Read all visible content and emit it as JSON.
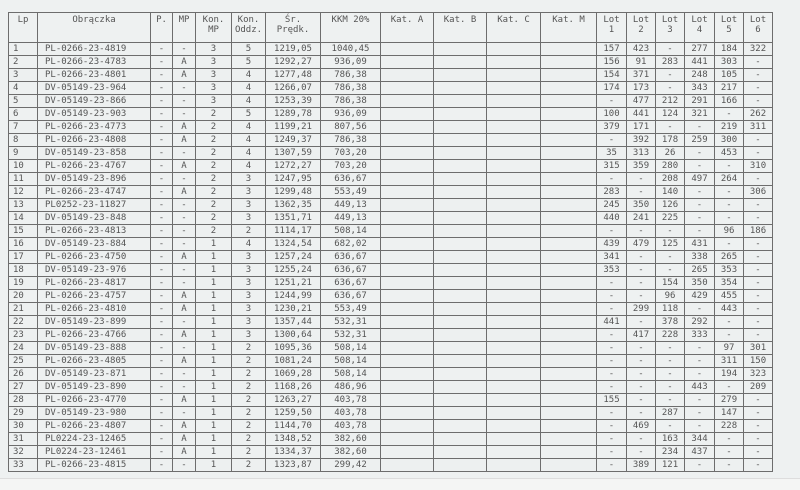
{
  "headers": [
    "Lp",
    "Obrączka",
    "P.",
    "MP",
    "Kon.\nMP",
    "Kon.\nOddz.",
    "Śr.\nPrędk.",
    "KKM 20%",
    "Kat. A",
    "Kat. B",
    "Kat. C",
    "Kat. M",
    "Lot\n1",
    "Lot\n2",
    "Lot\n3",
    "Lot\n4",
    "Lot\n5",
    "Lot\n6"
  ],
  "rows": [
    [
      "1",
      "PL-0266-23-4819",
      "-",
      "-",
      "3",
      "5",
      "1219,05",
      "1040,45",
      "",
      "",
      "",
      "",
      "157",
      "423",
      "-",
      "277",
      "184",
      "322"
    ],
    [
      "2",
      "PL-0266-23-4783",
      "-",
      "A",
      "3",
      "5",
      "1292,27",
      "936,09",
      "",
      "",
      "",
      "",
      "156",
      "91",
      "283",
      "441",
      "303",
      "-"
    ],
    [
      "3",
      "PL-0266-23-4801",
      "-",
      "A",
      "3",
      "4",
      "1277,48",
      "786,38",
      "",
      "",
      "",
      "",
      "154",
      "371",
      "-",
      "248",
      "105",
      "-"
    ],
    [
      "4",
      "DV-05149-23-964",
      "-",
      "-",
      "3",
      "4",
      "1266,07",
      "786,38",
      "",
      "",
      "",
      "",
      "174",
      "173",
      "-",
      "343",
      "217",
      "-"
    ],
    [
      "5",
      "DV-05149-23-866",
      "-",
      "-",
      "3",
      "4",
      "1253,39",
      "786,38",
      "",
      "",
      "",
      "",
      "-",
      "477",
      "212",
      "291",
      "166",
      "-"
    ],
    [
      "6",
      "DV-05149-23-903",
      "-",
      "-",
      "2",
      "5",
      "1289,78",
      "936,09",
      "",
      "",
      "",
      "",
      "100",
      "441",
      "124",
      "321",
      "-",
      "262"
    ],
    [
      "7",
      "PL-0266-23-4773",
      "-",
      "A",
      "2",
      "4",
      "1199,21",
      "807,56",
      "",
      "",
      "",
      "",
      "379",
      "171",
      "-",
      "-",
      "219",
      "311"
    ],
    [
      "8",
      "PL-0266-23-4808",
      "-",
      "A",
      "2",
      "4",
      "1249,37",
      "786,38",
      "",
      "",
      "",
      "",
      "-",
      "392",
      "178",
      "259",
      "300",
      "-"
    ],
    [
      "9",
      "DV-05149-23-858",
      "-",
      "-",
      "2",
      "4",
      "1307,59",
      "703,20",
      "",
      "",
      "",
      "",
      "35",
      "313",
      "26",
      "-",
      "453",
      "-"
    ],
    [
      "10",
      "PL-0266-23-4767",
      "-",
      "A",
      "2",
      "4",
      "1272,27",
      "703,20",
      "",
      "",
      "",
      "",
      "315",
      "359",
      "280",
      "-",
      "-",
      "310"
    ],
    [
      "11",
      "DV-05149-23-896",
      "-",
      "-",
      "2",
      "3",
      "1247,95",
      "636,67",
      "",
      "",
      "",
      "",
      "-",
      "-",
      "208",
      "497",
      "264",
      "-"
    ],
    [
      "12",
      "PL-0266-23-4747",
      "-",
      "A",
      "2",
      "3",
      "1299,48",
      "553,49",
      "",
      "",
      "",
      "",
      "283",
      "-",
      "140",
      "-",
      "-",
      "306"
    ],
    [
      "13",
      "PL0252-23-11827",
      "-",
      "-",
      "2",
      "3",
      "1362,35",
      "449,13",
      "",
      "",
      "",
      "",
      "245",
      "350",
      "126",
      "-",
      "-",
      "-"
    ],
    [
      "14",
      "DV-05149-23-848",
      "-",
      "-",
      "2",
      "3",
      "1351,71",
      "449,13",
      "",
      "",
      "",
      "",
      "440",
      "241",
      "225",
      "-",
      "-",
      "-"
    ],
    [
      "15",
      "PL-0266-23-4813",
      "-",
      "-",
      "2",
      "2",
      "1114,17",
      "508,14",
      "",
      "",
      "",
      "",
      "-",
      "-",
      "-",
      "-",
      "96",
      "186"
    ],
    [
      "16",
      "DV-05149-23-884",
      "-",
      "-",
      "1",
      "4",
      "1324,54",
      "682,02",
      "",
      "",
      "",
      "",
      "439",
      "479",
      "125",
      "431",
      "-",
      "-"
    ],
    [
      "17",
      "PL-0266-23-4750",
      "-",
      "A",
      "1",
      "3",
      "1257,24",
      "636,67",
      "",
      "",
      "",
      "",
      "341",
      "-",
      "-",
      "338",
      "265",
      "-"
    ],
    [
      "18",
      "DV-05149-23-976",
      "-",
      "-",
      "1",
      "3",
      "1255,24",
      "636,67",
      "",
      "",
      "",
      "",
      "353",
      "-",
      "-",
      "265",
      "353",
      "-"
    ],
    [
      "19",
      "PL-0266-23-4817",
      "-",
      "-",
      "1",
      "3",
      "1251,21",
      "636,67",
      "",
      "",
      "",
      "",
      "-",
      "-",
      "154",
      "350",
      "354",
      "-"
    ],
    [
      "20",
      "PL-0266-23-4757",
      "-",
      "A",
      "1",
      "3",
      "1244,99",
      "636,67",
      "",
      "",
      "",
      "",
      "-",
      "-",
      "96",
      "429",
      "455",
      "-"
    ],
    [
      "21",
      "PL-0266-23-4810",
      "-",
      "A",
      "1",
      "3",
      "1230,21",
      "553,49",
      "",
      "",
      "",
      "",
      "-",
      "299",
      "118",
      "-",
      "443",
      "-"
    ],
    [
      "22",
      "DV-05149-23-899",
      "-",
      "-",
      "1",
      "3",
      "1357,44",
      "532,31",
      "",
      "",
      "",
      "",
      "441",
      "-",
      "378",
      "292",
      "-",
      "-"
    ],
    [
      "23",
      "PL-0266-23-4766",
      "-",
      "A",
      "1",
      "3",
      "1300,64",
      "532,31",
      "",
      "",
      "",
      "",
      "-",
      "417",
      "228",
      "333",
      "-",
      "-"
    ],
    [
      "24",
      "DV-05149-23-888",
      "-",
      "-",
      "1",
      "2",
      "1095,36",
      "508,14",
      "",
      "",
      "",
      "",
      "-",
      "-",
      "-",
      "-",
      "97",
      "301"
    ],
    [
      "25",
      "PL-0266-23-4805",
      "-",
      "A",
      "1",
      "2",
      "1081,24",
      "508,14",
      "",
      "",
      "",
      "",
      "-",
      "-",
      "-",
      "-",
      "311",
      "150"
    ],
    [
      "26",
      "DV-05149-23-871",
      "-",
      "-",
      "1",
      "2",
      "1069,28",
      "508,14",
      "",
      "",
      "",
      "",
      "-",
      "-",
      "-",
      "-",
      "194",
      "323"
    ],
    [
      "27",
      "DV-05149-23-890",
      "-",
      "-",
      "1",
      "2",
      "1168,26",
      "486,96",
      "",
      "",
      "",
      "",
      "-",
      "-",
      "-",
      "443",
      "-",
      "209"
    ],
    [
      "28",
      "PL-0266-23-4770",
      "-",
      "A",
      "1",
      "2",
      "1263,27",
      "403,78",
      "",
      "",
      "",
      "",
      "155",
      "-",
      "-",
      "-",
      "279",
      "-"
    ],
    [
      "29",
      "DV-05149-23-980",
      "-",
      "-",
      "1",
      "2",
      "1259,50",
      "403,78",
      "",
      "",
      "",
      "",
      "-",
      "-",
      "287",
      "-",
      "147",
      "-"
    ],
    [
      "30",
      "PL-0266-23-4807",
      "-",
      "A",
      "1",
      "2",
      "1144,70",
      "403,78",
      "",
      "",
      "",
      "",
      "-",
      "469",
      "-",
      "-",
      "228",
      "-"
    ],
    [
      "31",
      "PL0224-23-12465",
      "-",
      "A",
      "1",
      "2",
      "1348,52",
      "382,60",
      "",
      "",
      "",
      "",
      "-",
      "-",
      "163",
      "344",
      "-",
      "-"
    ],
    [
      "32",
      "PL0224-23-12461",
      "-",
      "A",
      "1",
      "2",
      "1334,37",
      "382,60",
      "",
      "",
      "",
      "",
      "-",
      "-",
      "234",
      "437",
      "-",
      "-"
    ],
    [
      "33",
      "PL-0266-23-4815",
      "-",
      "-",
      "1",
      "2",
      "1323,87",
      "299,42",
      "",
      "",
      "",
      "",
      "-",
      "389",
      "121",
      "-",
      "-",
      "-"
    ]
  ]
}
